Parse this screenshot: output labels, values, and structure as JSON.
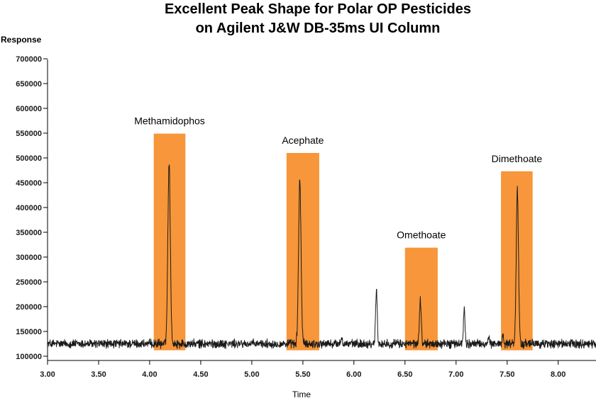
{
  "chart_data": {
    "type": "line",
    "title": "Excellent Peak Shape for Polar OP Pesticides",
    "subtitle": "on Agilent J&W DB-35ms UI Column",
    "xlabel": "Time",
    "ylabel": "Response",
    "xlim": [
      3.0,
      8.37
    ],
    "ylim": [
      100000,
      700000
    ],
    "x_ticks": [
      3.0,
      3.5,
      4.0,
      4.5,
      5.0,
      5.5,
      6.0,
      6.5,
      7.0,
      7.5,
      8.0
    ],
    "x_tick_labels": [
      "3.00",
      "3.50",
      "4.00",
      "4.50",
      "5.00",
      "5.50",
      "6.00",
      "6.50",
      "7.00",
      "7.50",
      "8.00"
    ],
    "y_ticks": [
      100000,
      150000,
      200000,
      250000,
      300000,
      350000,
      400000,
      450000,
      500000,
      550000,
      600000,
      650000,
      700000
    ],
    "y_tick_labels": [
      "100000",
      "150000",
      "200000",
      "250000",
      "300000",
      "350000",
      "400000",
      "450000",
      "500000",
      "550000",
      "600000",
      "650000",
      "700000"
    ],
    "grid": false,
    "trace_color": "#1a1a1a",
    "highlight_color": "#f7963a",
    "baseline": 125000,
    "noise_amplitude": 7000,
    "peaks": [
      {
        "x": 4.19,
        "height": 490000,
        "width": 0.012
      },
      {
        "x": 5.47,
        "height": 455000,
        "width": 0.012
      },
      {
        "x": 5.88,
        "height": 140000,
        "width": 0.006
      },
      {
        "x": 6.22,
        "height": 235000,
        "width": 0.008
      },
      {
        "x": 6.65,
        "height": 212000,
        "width": 0.009
      },
      {
        "x": 7.08,
        "height": 195000,
        "width": 0.008
      },
      {
        "x": 7.32,
        "height": 138000,
        "width": 0.005
      },
      {
        "x": 7.46,
        "height": 145000,
        "width": 0.007
      },
      {
        "x": 7.6,
        "height": 435000,
        "width": 0.011
      }
    ],
    "highlighted_peaks": [
      {
        "label": "Methamidophos",
        "x_start": 4.04,
        "x_end": 4.35,
        "y_bottom": 112000,
        "y_top": 549000
      },
      {
        "label": "Acephate",
        "x_start": 5.34,
        "x_end": 5.66,
        "y_bottom": 112000,
        "y_top": 510000
      },
      {
        "label": "Omethoate",
        "x_start": 6.5,
        "x_end": 6.82,
        "y_bottom": 112000,
        "y_top": 319000
      },
      {
        "label": "Dimethoate",
        "x_start": 7.44,
        "x_end": 7.75,
        "y_bottom": 112000,
        "y_top": 473000
      }
    ]
  }
}
